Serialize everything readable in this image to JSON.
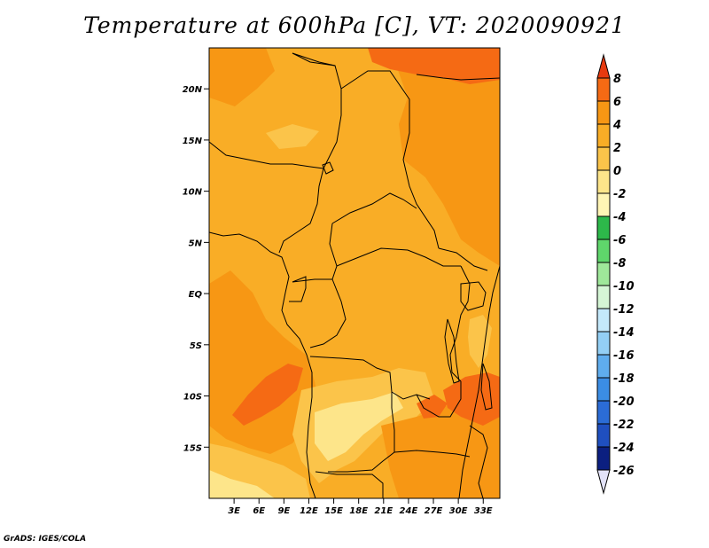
{
  "title": "Temperature at 600hPa [C], VT: 2020090921",
  "credit": "GrADS: IGES/COLA",
  "map": {
    "lon_range": [
      0,
      35
    ],
    "lat_range": [
      -20,
      24
    ],
    "lat_ticks": [
      {
        "value": 20,
        "label": "20N"
      },
      {
        "value": 15,
        "label": "15N"
      },
      {
        "value": 10,
        "label": "10N"
      },
      {
        "value": 5,
        "label": "5N"
      },
      {
        "value": 0,
        "label": "EQ"
      },
      {
        "value": -5,
        "label": "5S"
      },
      {
        "value": -10,
        "label": "10S"
      },
      {
        "value": -15,
        "label": "15S"
      }
    ],
    "lon_ticks": [
      {
        "value": 3,
        "label": "3E"
      },
      {
        "value": 6,
        "label": "6E"
      },
      {
        "value": 9,
        "label": "9E"
      },
      {
        "value": 12,
        "label": "12E"
      },
      {
        "value": 15,
        "label": "15E"
      },
      {
        "value": 18,
        "label": "18E"
      },
      {
        "value": 21,
        "label": "21E"
      },
      {
        "value": 24,
        "label": "24E"
      },
      {
        "value": 27,
        "label": "27E"
      },
      {
        "value": 30,
        "label": "30E"
      },
      {
        "value": 33,
        "label": "33E"
      }
    ]
  },
  "colorbar": {
    "labels": [
      "8",
      "6",
      "4",
      "2",
      "0",
      "-2",
      "-4",
      "-6",
      "-8",
      "-10",
      "-12",
      "-14",
      "-16",
      "-18",
      "-20",
      "-22",
      "-24",
      "-26"
    ],
    "colors": [
      "#e63a0f",
      "#f56a14",
      "#f79714",
      "#f9ad26",
      "#fbc44a",
      "#fde58a",
      "#fff5b5",
      "#2db84a",
      "#5fd66b",
      "#9fe89a",
      "#d5f6d5",
      "#c4e9fb",
      "#93cff5",
      "#5fadee",
      "#3b8de4",
      "#2b6cd6",
      "#1f4fbf",
      "#0b1f80",
      "#0a0a50",
      "#e2e2f8"
    ]
  }
}
